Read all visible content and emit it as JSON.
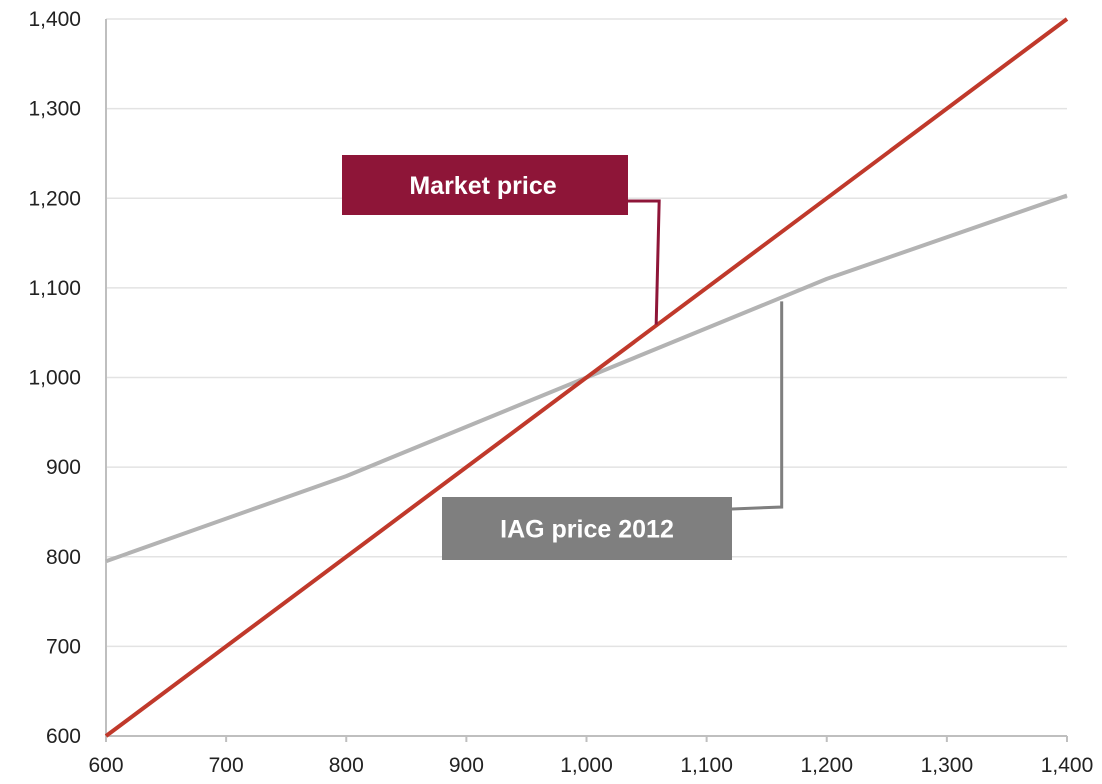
{
  "chart_data": {
    "type": "line",
    "title": "",
    "xlabel": "",
    "ylabel": "",
    "xlim": [
      600,
      1400
    ],
    "ylim": [
      600,
      1400
    ],
    "grid": true,
    "x_ticks": [
      600,
      700,
      800,
      900,
      1000,
      1100,
      1200,
      1300,
      1400
    ],
    "x_tick_labels": [
      "600",
      "700",
      "800",
      "900",
      "1,000",
      "1,100",
      "1,200",
      "1,300",
      "1,400"
    ],
    "y_ticks": [
      600,
      700,
      800,
      900,
      1000,
      1100,
      1200,
      1300,
      1400
    ],
    "y_tick_labels": [
      "600",
      "700",
      "800",
      "900",
      "1,000",
      "1,100",
      "1,200",
      "1,300",
      "1,400"
    ],
    "series": [
      {
        "name": "Market price",
        "color": "#c0392b",
        "x": [
          600,
          1400
        ],
        "y": [
          600,
          1400
        ]
      },
      {
        "name": "IAG price 2012",
        "color": "#b3b3b3",
        "x": [
          600,
          800,
          1000,
          1200,
          1400
        ],
        "y": [
          795,
          890,
          1000,
          1110,
          1203
        ]
      }
    ],
    "annotations": [
      {
        "text": "Market price",
        "series": 0,
        "box_color": "#8e1538",
        "leader_color": "#8e1538",
        "point": [
          1058,
          1059
        ]
      },
      {
        "text": "IAG price 2012",
        "series": 1,
        "box_color": "#7f7f7f",
        "leader_color": "#7f7f7f",
        "point": [
          1150,
          1085
        ]
      }
    ]
  }
}
